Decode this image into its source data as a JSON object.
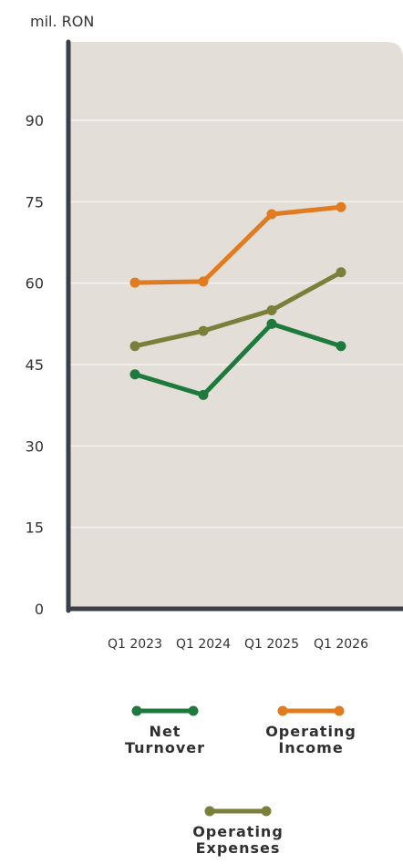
{
  "chart_data": {
    "type": "line",
    "unit_label": "mil. RON",
    "categories": [
      "Q1 2023",
      "Q1 2024",
      "Q1 2025",
      "Q1 2026"
    ],
    "y_ticks": [
      0,
      15,
      30,
      45,
      60,
      75,
      90
    ],
    "ylim": [
      0,
      100
    ],
    "grid": true,
    "legend_position": "bottom",
    "series": [
      {
        "name": "Net Turnover",
        "name_lines": [
          "Net",
          "Turnover"
        ],
        "color": "#1e7a3c",
        "values": [
          43.2,
          39.4,
          52.5,
          48.4
        ]
      },
      {
        "name": "Operating Income",
        "name_lines": [
          "Operating",
          "Income"
        ],
        "color": "#e07b1f",
        "values": [
          60.1,
          60.3,
          72.7,
          74.0
        ]
      },
      {
        "name": "Operating Expenses",
        "name_lines": [
          "Operating",
          "Expenses"
        ],
        "color": "#7a7f3a",
        "values": [
          48.4,
          51.2,
          55.0,
          62.0
        ]
      }
    ],
    "colors": {
      "plot_bg": "#e3ded7",
      "axis": "#3a3f4a",
      "grid": "#f5f3ef"
    }
  }
}
